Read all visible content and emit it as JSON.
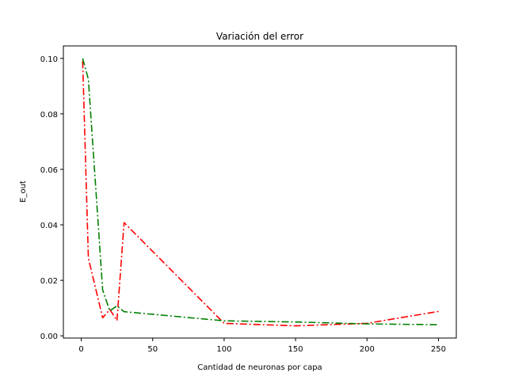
{
  "chart_data": {
    "type": "line",
    "title": "Variación del error",
    "xlabel": "Cantidad de neuronas por capa",
    "ylabel": "E_out",
    "xlim": [
      -12.5,
      262.5
    ],
    "ylim": [
      -0.0008,
      0.1045
    ],
    "xticks": [
      0,
      50,
      100,
      150,
      200,
      250
    ],
    "xtick_labels": [
      "0",
      "50",
      "100",
      "150",
      "200",
      "250"
    ],
    "yticks": [
      0.0,
      0.02,
      0.04,
      0.06,
      0.08,
      0.1
    ],
    "ytick_labels": [
      "0.00",
      "0.02",
      "0.04",
      "0.06",
      "0.08",
      "0.10"
    ],
    "grid": false,
    "series": [
      {
        "color": "#ff0000",
        "line_style": "dash-dot",
        "x": [
          1,
          5,
          15,
          20,
          25,
          30,
          100,
          150,
          200,
          250
        ],
        "y": [
          0.099,
          0.028,
          0.0065,
          0.0095,
          0.0055,
          0.0408,
          0.0045,
          0.0036,
          0.0045,
          0.0088
        ]
      },
      {
        "color": "#008000",
        "line_style": "dash-dot",
        "x": [
          1,
          5,
          15,
          20,
          25,
          30,
          100,
          150,
          200,
          250
        ],
        "y": [
          0.1,
          0.0925,
          0.0165,
          0.009,
          0.0108,
          0.0087,
          0.0054,
          0.005,
          0.0043,
          0.004
        ]
      }
    ]
  }
}
